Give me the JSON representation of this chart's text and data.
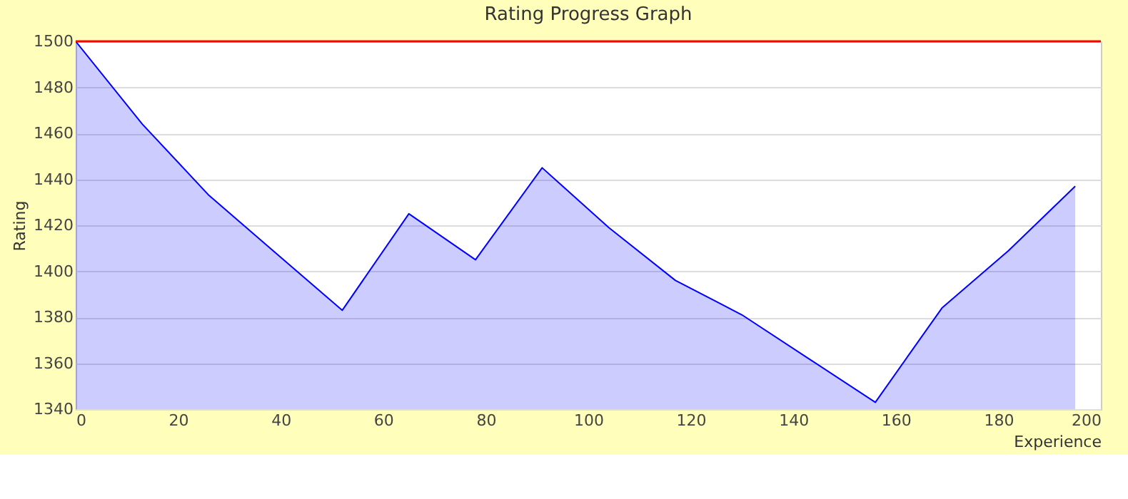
{
  "chart_data": {
    "type": "area",
    "title": "Rating Progress Graph",
    "xlabel": "Experience",
    "ylabel": "Rating",
    "x": [
      0,
      13,
      26,
      39,
      52,
      65,
      78,
      91,
      104,
      117,
      130,
      143,
      156,
      169,
      182,
      195
    ],
    "series": [
      {
        "color": "#0000ff",
        "values": [
          1500,
          1464,
          1433,
          1408,
          1383,
          1425,
          1405,
          1445,
          1419,
          1396,
          1381,
          1362,
          1343,
          1384,
          1409,
          1437
        ]
      }
    ],
    "xlim": [
      0,
      200
    ],
    "xticks": [
      0,
      20,
      40,
      60,
      80,
      100,
      120,
      140,
      160,
      180,
      200
    ],
    "ylim": [
      1340,
      1500
    ],
    "yticks": [
      1340,
      1360,
      1380,
      1400,
      1420,
      1440,
      1460,
      1480,
      1500
    ],
    "ref_lines": [
      {
        "axis": "y",
        "value": 1500,
        "label": null,
        "color": "#ff0000"
      }
    ],
    "grid": "y",
    "legend": false
  }
}
